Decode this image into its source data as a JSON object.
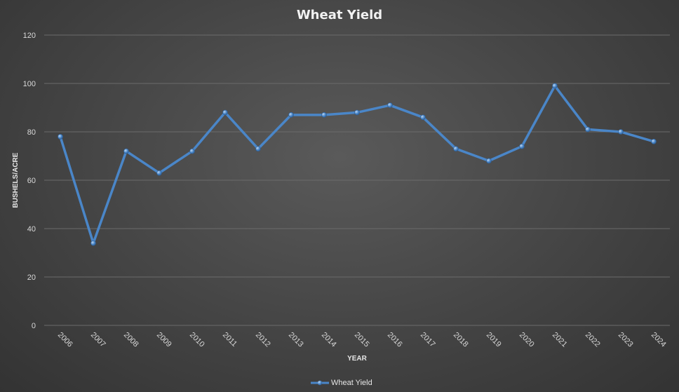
{
  "chart_data": {
    "type": "line",
    "title": "Wheat Yield",
    "xlabel": "YEAR",
    "ylabel": "BUSHELS/ACRE",
    "ylim": [
      0,
      120
    ],
    "yticks": [
      "0",
      "20",
      "40",
      "60",
      "80",
      "100",
      "120"
    ],
    "categories": [
      "2006",
      "2007",
      "2008",
      "2009",
      "2010",
      "2011",
      "2012",
      "2013",
      "2014",
      "2015",
      "2016",
      "2017",
      "2018",
      "2019",
      "2020",
      "2021",
      "2022",
      "2023",
      "2024"
    ],
    "series": [
      {
        "name": "Wheat Yield",
        "color": "#4a86c8",
        "values": [
          78,
          34,
          72,
          63,
          72,
          88,
          73,
          87,
          87,
          88,
          91,
          86,
          73,
          68,
          74,
          99,
          81,
          80,
          76
        ]
      }
    ],
    "grid": true,
    "legend": "bottom"
  }
}
